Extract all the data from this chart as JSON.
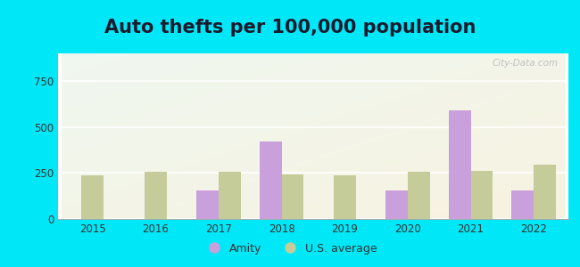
{
  "title": "Auto thefts per 100,000 population",
  "years": [
    2015,
    2016,
    2017,
    2018,
    2019,
    2020,
    2021,
    2022
  ],
  "amity": [
    0,
    0,
    155,
    420,
    0,
    155,
    590,
    155
  ],
  "us_avg": [
    237,
    258,
    258,
    243,
    237,
    258,
    262,
    296
  ],
  "amity_color": "#c9a0dc",
  "us_avg_color": "#c5cc9a",
  "fig_bg": "#00e8f8",
  "title_fontsize": 15,
  "ylim": [
    0,
    900
  ],
  "yticks": [
    0,
    250,
    500,
    750
  ],
  "bar_width": 0.35,
  "legend_labels": [
    "Amity",
    "U.S. average"
  ]
}
